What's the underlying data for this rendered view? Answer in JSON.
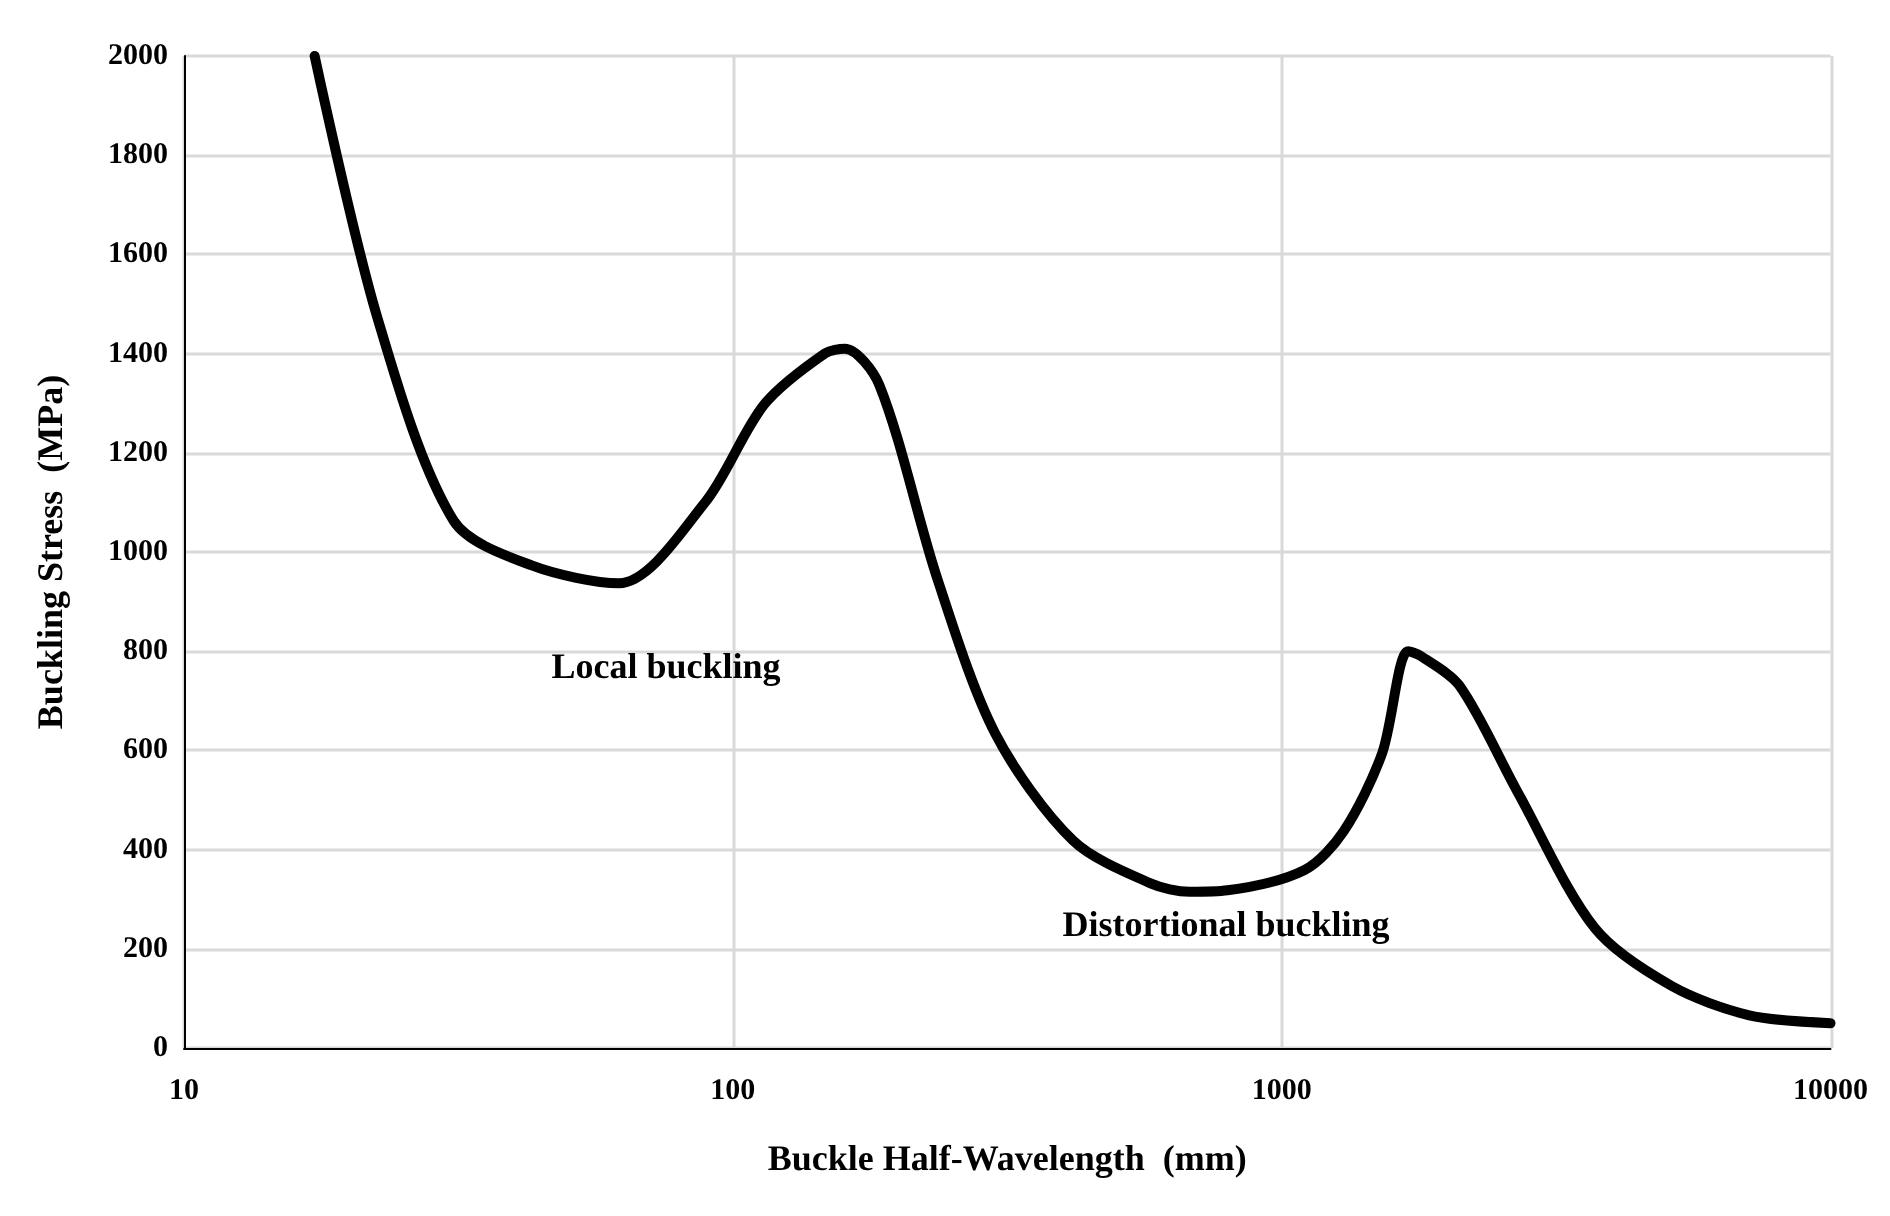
{
  "chart_data": {
    "type": "line",
    "xlabel": "Buckle Half-Wavelength  (mm)",
    "ylabel": "Buckling Stress  (MPa)",
    "log": "x",
    "xlim": [
      10,
      10000
    ],
    "xticks": [
      10,
      100,
      1000,
      10000
    ],
    "ylim": [
      0,
      2000
    ],
    "yticks": [
      0,
      200,
      400,
      600,
      800,
      1000,
      1200,
      1400,
      1600,
      1800,
      2000
    ],
    "grid": true,
    "marker": "none",
    "line_style": "solid",
    "series": [
      {
        "color": "#000000",
        "x": [
          17.3,
          22.5,
          31,
          43,
          62,
          89,
          114,
          147,
          160,
          185,
          236,
          301,
          417,
          577,
          680,
          797,
          1101,
          1297,
          1524,
          1700,
          1794,
          2110,
          2691,
          3718,
          5137,
          7112,
          10000
        ],
        "values": [
          2000,
          1473,
          1063,
          973,
          937,
          1100,
          1297,
          1400,
          1410,
          1336,
          945,
          633,
          418,
          332,
          315,
          318,
          359,
          437,
          594,
          800,
          790,
          730,
          516,
          242,
          125,
          66,
          50
        ]
      }
    ],
    "annotations": [
      "Local buckling",
      "Distortional buckling"
    ]
  }
}
